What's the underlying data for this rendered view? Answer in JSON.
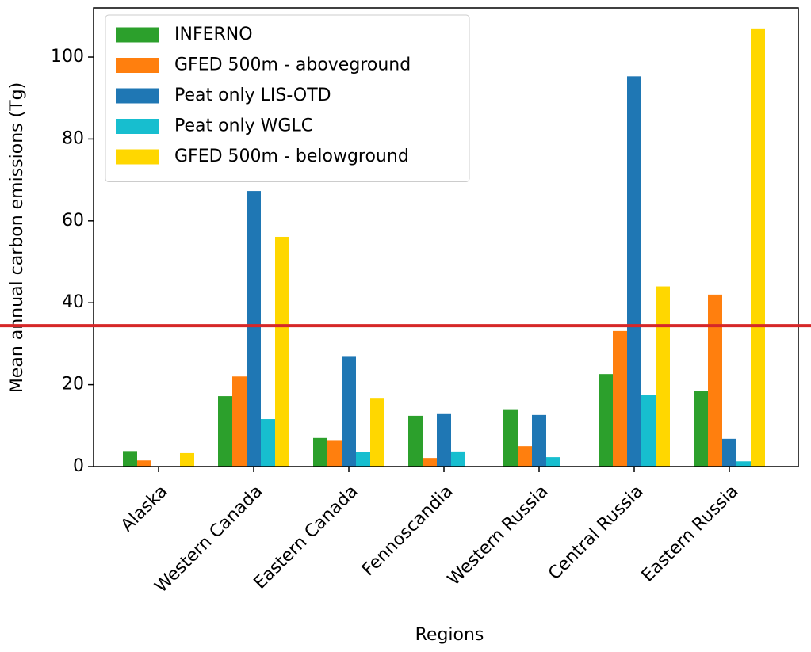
{
  "chart_data": {
    "type": "bar",
    "x_label": "Regions",
    "y_label": "Mean annual carbon emissions (Tg)",
    "categories": [
      "Alaska",
      "Western Canada",
      "Eastern Canada",
      "Fennoscandia",
      "Western Russia",
      "Central Russia",
      "Eastern Russia"
    ],
    "series": [
      {
        "name": "INFERNO",
        "color": "#2ca02c",
        "values": [
          3.8,
          17.2,
          7,
          12.4,
          14,
          22.6,
          18.4
        ]
      },
      {
        "name": "GFED 500m - aboveground",
        "color": "#ff7f0e",
        "values": [
          1.5,
          22,
          6.3,
          2.1,
          5,
          33.1,
          42
        ]
      },
      {
        "name": "Peat only LIS-OTD",
        "color": "#1f77b4",
        "values": [
          0,
          67.3,
          27,
          13,
          12.6,
          95.3,
          6.8
        ]
      },
      {
        "name": "Peat only WGLC",
        "color": "#17becf",
        "values": [
          0,
          11.6,
          3.5,
          3.7,
          2.3,
          17.5,
          1.3
        ]
      },
      {
        "name": "GFED 500m - belowground",
        "color": "#ffd700",
        "values": [
          3.3,
          56.1,
          16.6,
          0,
          0,
          44,
          107
        ]
      }
    ],
    "ylim": [
      0,
      112
    ],
    "yticks": [
      0,
      20,
      40,
      60,
      80,
      100
    ],
    "legend": "upper left",
    "hline": {
      "value": 34.4,
      "color": "#d62728"
    }
  }
}
